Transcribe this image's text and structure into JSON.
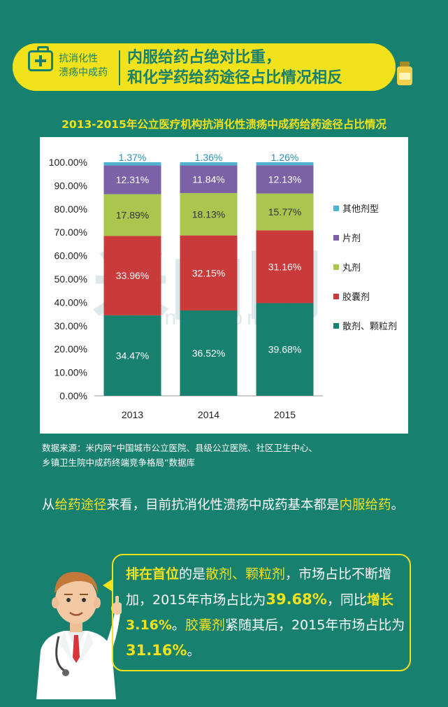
{
  "header": {
    "tag_line1": "抗消化性",
    "tag_line2": "溃疡中成药",
    "headline_line1": "内服给药占绝对比重，",
    "headline_line2": "和化学药给药途径占比情况相反"
  },
  "colors": {
    "background": "#17806e",
    "accent": "#f2e21c",
    "series": [
      "#17806e",
      "#c93a3a",
      "#a9c64e",
      "#7b62a6",
      "#4fb3cf"
    ]
  },
  "chart_data": {
    "type": "bar",
    "stacked": true,
    "title": "2013-2015年公立医疗机构抗消化性溃疡中成药给药途径占比情况",
    "categories": [
      "2013",
      "2014",
      "2015"
    ],
    "y_ticks": [
      "0.00%",
      "10.00%",
      "20.00%",
      "30.00%",
      "40.00%",
      "50.00%",
      "60.00%",
      "70.00%",
      "80.00%",
      "90.00%",
      "100.00%"
    ],
    "ylim": [
      0,
      100
    ],
    "series": [
      {
        "name": "散剂、颗粒剂",
        "values": [
          34.47,
          36.52,
          39.68
        ],
        "labels": [
          "34.47%",
          "36.52%",
          "39.68%"
        ]
      },
      {
        "name": "胶囊剂",
        "values": [
          33.96,
          32.15,
          31.16
        ],
        "labels": [
          "33.96%",
          "32.15%",
          "31.16%"
        ]
      },
      {
        "name": "丸剂",
        "values": [
          17.89,
          18.13,
          15.77
        ],
        "labels": [
          "17.89%",
          "18.13%",
          "15.77%"
        ]
      },
      {
        "name": "片剂",
        "values": [
          12.31,
          11.84,
          12.13
        ],
        "labels": [
          "12.31%",
          "11.84%",
          "12.13%"
        ]
      },
      {
        "name": "其他剂型",
        "values": [
          1.37,
          1.36,
          1.26
        ],
        "labels": [
          "1.37%",
          "1.36%",
          "1.26%"
        ]
      }
    ],
    "legend_order": [
      "其他剂型",
      "片剂",
      "丸剂",
      "胶囊剂",
      "散剂、颗粒剂"
    ],
    "legend_position": "right"
  },
  "watermark": {
    "text": "米内网",
    "url": "menet.com.cn"
  },
  "source": {
    "line1": "数据来源：米内网“中国城市公立医院、县级公立医院、社区卫生中心、",
    "line2": "乡镇卫生院中成药终端竞争格局”数据库"
  },
  "paragraph": {
    "p1": "从",
    "hl1": "给药途径",
    "p2": "来看，目前抗消化性溃疡中成药基本都是",
    "hl2": "内服给药",
    "p3": "。"
  },
  "bubble": {
    "b1": "排在首位",
    "t1": "的是",
    "b2": "散剂、颗粒剂",
    "t2": "，市场占比不断增加，2015年市场占比为",
    "n1": "39.68%",
    "t3": "，同比",
    "b3": "增长3.16%",
    "t4": "。",
    "b4": "胶囊剂",
    "t5": "紧随其后，2015年市场占比为",
    "n2": "31.16%",
    "t6": "。"
  }
}
